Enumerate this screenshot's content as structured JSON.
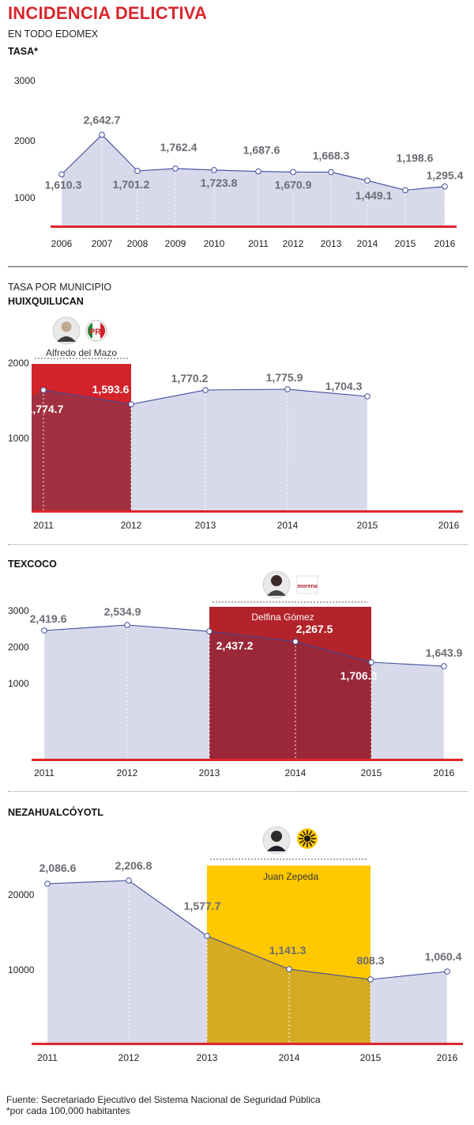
{
  "header": {
    "title": "INCIDENCIA DELICTIVA",
    "subtitle": "EN TODO EDOMEX",
    "rate_label": "TASA*",
    "municipal_label": "TASA POR MUNICIPIO"
  },
  "colors": {
    "title": "#d8262d",
    "area": "#d8daeb",
    "line": "#3d4a9c",
    "baseline": "#e0262b",
    "pri": "#c8232b",
    "morena": "#b2232a",
    "prd": "#ffc800"
  },
  "chart_data": [
    {
      "id": "edomex",
      "type": "area",
      "title": "TASA*",
      "x": [
        2006,
        2007,
        2008,
        2009,
        2010,
        2011,
        2012,
        2013,
        2014,
        2015,
        2016
      ],
      "values": [
        1610.3,
        2642.7,
        1701.2,
        1762.4,
        1723.8,
        1687.6,
        1670.9,
        1668.3,
        1449.1,
        1198.6,
        1295.4
      ],
      "labels": [
        "1,610.3",
        "2,642.7",
        "1,701.2",
        "1,762.4",
        "1,723.8",
        "1,687.6",
        "1,670.9",
        "1,668.3",
        "1,449.1",
        "1,198.6",
        "1,295.4"
      ],
      "yticks": [
        "1000",
        "2000",
        "3000"
      ],
      "ylim": [
        500,
        3200
      ],
      "grid": "vertical dotted"
    },
    {
      "id": "huixquilucan",
      "type": "area",
      "title": "HUIXQUILUCAN",
      "x": [
        2011,
        2012,
        2013,
        2014,
        2015,
        2016
      ],
      "values": [
        1774.7,
        1593.6,
        1770.2,
        1775.9,
        1704.3,
        null
      ],
      "labels": [
        "1,774.7",
        "1,593.6",
        "1,770.2",
        "1,775.9",
        "1,704.3",
        ""
      ],
      "yticks": [
        "1000",
        "2000"
      ],
      "ylim": [
        0,
        2000
      ],
      "highlight": {
        "from": 2011,
        "to": 2012,
        "person": "Alfredo del Mazo",
        "party": "PRI",
        "color": "#c8232b"
      }
    },
    {
      "id": "texcoco",
      "type": "area",
      "title": "TEXCOCO",
      "x": [
        2011,
        2012,
        2013,
        2014,
        2015,
        2016
      ],
      "values": [
        2419.6,
        2534.9,
        2437.2,
        2267.5,
        1706.3,
        1643.9
      ],
      "labels": [
        "2,419.6",
        "2,534.9",
        "2,437.2",
        "2,267.5",
        "1,706.3",
        "1,643.9"
      ],
      "yticks": [
        "1000",
        "2000",
        "3000"
      ],
      "ylim": [
        0,
        3000
      ],
      "highlight": {
        "from": 2013,
        "to": 2015,
        "person": "Delfina Gómez",
        "party": "morena",
        "color": "#b2232a"
      }
    },
    {
      "id": "nezahualcoyotl",
      "type": "area",
      "title": "NEZAHUALCÓYOTL",
      "x": [
        2011,
        2012,
        2013,
        2014,
        2015,
        2016
      ],
      "values": [
        2086.6,
        2206.8,
        1577.7,
        1141.3,
        808.3,
        1060.4
      ],
      "labels": [
        "2,086.6",
        "2,206.8",
        "1,577.7",
        "1,141.3",
        "808.3",
        "1,060.4"
      ],
      "yticks": [
        "10000",
        "20000"
      ],
      "highlight": {
        "from": 2013,
        "to": 2015,
        "person": "Juan Zepeda",
        "party": "PRD",
        "color": "#ffc800"
      }
    }
  ],
  "footer": {
    "source": "Fuente: Secretariado Ejecutivo del Sistema Nacional de Seguridad Pública",
    "note": "*por cada 100,000 habitantes"
  }
}
